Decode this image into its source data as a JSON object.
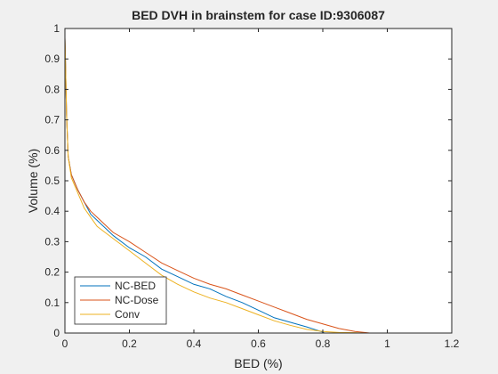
{
  "chart_data": {
    "type": "line",
    "title": "BED DVH in brainstem for case ID:9306087",
    "xlabel": "BED (%)",
    "ylabel": "Volume (%)",
    "xlim": [
      0,
      1.2
    ],
    "ylim": [
      0,
      1
    ],
    "xticks": [
      0,
      0.2,
      0.4,
      0.6,
      0.8,
      1,
      1.2
    ],
    "xtick_labels": [
      "0",
      "0.2",
      "0.4",
      "0.6",
      "0.8",
      "1",
      "1.2"
    ],
    "yticks": [
      0,
      0.1,
      0.2,
      0.3,
      0.4,
      0.5,
      0.6,
      0.7,
      0.8,
      0.9,
      1
    ],
    "ytick_labels": [
      "0",
      "0.1",
      "0.2",
      "0.3",
      "0.4",
      "0.5",
      "0.6",
      "0.7",
      "0.8",
      "0.9",
      "1"
    ],
    "grid": false,
    "legend_position": "bottom-left",
    "series": [
      {
        "name": "NC-BED",
        "color": "#0072BD",
        "x": [
          0,
          0.002,
          0.005,
          0.01,
          0.02,
          0.04,
          0.06,
          0.08,
          0.1,
          0.15,
          0.2,
          0.25,
          0.3,
          0.35,
          0.4,
          0.45,
          0.5,
          0.55,
          0.6,
          0.65,
          0.7,
          0.75,
          0.78,
          0.8,
          0.805
        ],
        "y": [
          0.97,
          0.88,
          0.72,
          0.58,
          0.52,
          0.47,
          0.43,
          0.39,
          0.37,
          0.32,
          0.28,
          0.25,
          0.21,
          0.185,
          0.16,
          0.145,
          0.12,
          0.1,
          0.075,
          0.05,
          0.035,
          0.02,
          0.01,
          0.003,
          0
        ]
      },
      {
        "name": "NC-Dose",
        "color": "#D95319",
        "x": [
          0,
          0.002,
          0.005,
          0.01,
          0.02,
          0.04,
          0.06,
          0.08,
          0.1,
          0.15,
          0.2,
          0.25,
          0.3,
          0.35,
          0.4,
          0.45,
          0.5,
          0.55,
          0.6,
          0.65,
          0.7,
          0.75,
          0.8,
          0.85,
          0.9,
          0.93,
          0.945
        ],
        "y": [
          0.97,
          0.88,
          0.72,
          0.58,
          0.52,
          0.47,
          0.43,
          0.4,
          0.38,
          0.33,
          0.3,
          0.265,
          0.23,
          0.205,
          0.18,
          0.16,
          0.145,
          0.125,
          0.105,
          0.085,
          0.065,
          0.045,
          0.03,
          0.015,
          0.005,
          0.002,
          0
        ]
      },
      {
        "name": "Conv",
        "color": "#EDB120",
        "x": [
          0,
          0.002,
          0.005,
          0.01,
          0.02,
          0.04,
          0.06,
          0.08,
          0.1,
          0.15,
          0.2,
          0.25,
          0.3,
          0.35,
          0.4,
          0.45,
          0.5,
          0.55,
          0.6,
          0.65,
          0.7,
          0.75,
          0.8,
          0.85,
          0.9,
          0.93
        ],
        "y": [
          0.97,
          0.88,
          0.72,
          0.58,
          0.51,
          0.46,
          0.41,
          0.38,
          0.35,
          0.31,
          0.27,
          0.23,
          0.19,
          0.16,
          0.135,
          0.115,
          0.1,
          0.08,
          0.06,
          0.04,
          0.025,
          0.012,
          0.005,
          0.002,
          0.001,
          0
        ]
      }
    ]
  }
}
